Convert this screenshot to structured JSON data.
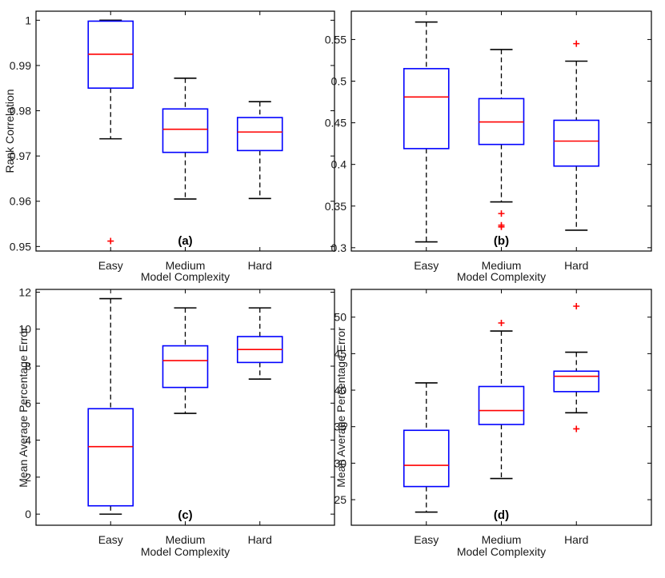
{
  "colors": {
    "box": "#0000ff",
    "median": "#ff0000",
    "whisker": "#000000",
    "outlier": "#ff0000"
  },
  "chart_data": [
    {
      "type": "box",
      "panel_label": "(a)",
      "xlabel": "Model Complexity",
      "ylabel": "Rank Correlation",
      "categories": [
        "Easy",
        "Medium",
        "Hard"
      ],
      "ylim": [
        0.949,
        1.002
      ],
      "yticks": [
        0.95,
        0.96,
        0.97,
        0.98,
        0.99,
        1
      ],
      "ytick_labels": [
        "0.95",
        "0.96",
        "0.97",
        "0.98",
        "0.99",
        "1"
      ],
      "boxes": [
        {
          "category": "Easy",
          "whisker_low": 0.9738,
          "q1": 0.985,
          "median": 0.9925,
          "q3": 0.9998,
          "whisker_high": 1.0,
          "outliers": [
            0.9512
          ]
        },
        {
          "category": "Medium",
          "whisker_low": 0.9605,
          "q1": 0.9708,
          "median": 0.9759,
          "q3": 0.9804,
          "whisker_high": 0.9872,
          "outliers": []
        },
        {
          "category": "Hard",
          "whisker_low": 0.9606,
          "q1": 0.9712,
          "median": 0.9753,
          "q3": 0.9785,
          "whisker_high": 0.982,
          "outliers": []
        }
      ]
    },
    {
      "type": "box",
      "panel_label": "(b)",
      "xlabel": "Model Complexity",
      "ylabel": "",
      "categories": [
        "Easy",
        "Medium",
        "Hard"
      ],
      "ylim": [
        0.296,
        0.584
      ],
      "yticks": [
        0.3,
        0.35,
        0.4,
        0.45,
        0.5,
        0.55
      ],
      "ytick_labels": [
        "0.3",
        "0.35",
        "0.4",
        "0.45",
        "0.5",
        "0.55"
      ],
      "boxes": [
        {
          "category": "Easy",
          "whisker_low": 0.307,
          "q1": 0.419,
          "median": 0.481,
          "q3": 0.515,
          "whisker_high": 0.571,
          "outliers": []
        },
        {
          "category": "Medium",
          "whisker_low": 0.355,
          "q1": 0.424,
          "median": 0.451,
          "q3": 0.479,
          "whisker_high": 0.538,
          "outliers": [
            0.341,
            0.327,
            0.325
          ]
        },
        {
          "category": "Hard",
          "whisker_low": 0.321,
          "q1": 0.398,
          "median": 0.428,
          "q3": 0.453,
          "whisker_high": 0.524,
          "outliers": [
            0.545
          ]
        }
      ]
    },
    {
      "type": "box",
      "panel_label": "(c)",
      "xlabel": "Model Complexity",
      "ylabel": "Mean Average Percentage Error",
      "categories": [
        "Easy",
        "Medium",
        "Hard"
      ],
      "ylim": [
        -0.6,
        12.15
      ],
      "yticks": [
        0,
        2,
        4,
        6,
        8,
        10,
        12
      ],
      "ytick_labels": [
        "0",
        "2",
        "4",
        "6",
        "8",
        "10",
        "12"
      ],
      "boxes": [
        {
          "category": "Easy",
          "whisker_low": 0.0,
          "q1": 0.45,
          "median": 3.65,
          "q3": 5.7,
          "whisker_high": 11.65,
          "outliers": []
        },
        {
          "category": "Medium",
          "whisker_low": 5.45,
          "q1": 6.85,
          "median": 8.3,
          "q3": 9.1,
          "whisker_high": 11.15,
          "outliers": []
        },
        {
          "category": "Hard",
          "whisker_low": 7.3,
          "q1": 8.2,
          "median": 8.9,
          "q3": 9.6,
          "whisker_high": 11.15,
          "outliers": []
        }
      ]
    },
    {
      "type": "box",
      "panel_label": "(d)",
      "xlabel": "Model Complexity",
      "ylabel": "Mean Average Percentage Error",
      "categories": [
        "Easy",
        "Medium",
        "Hard"
      ],
      "ylim": [
        21.5,
        53.8
      ],
      "yticks": [
        25,
        30,
        35,
        40,
        45,
        50
      ],
      "ytick_labels": [
        "25",
        "30",
        "35",
        "40",
        "45",
        "50"
      ],
      "boxes": [
        {
          "category": "Easy",
          "whisker_low": 23.3,
          "q1": 26.8,
          "median": 29.7,
          "q3": 34.5,
          "whisker_high": 41.0,
          "outliers": []
        },
        {
          "category": "Medium",
          "whisker_low": 27.9,
          "q1": 35.3,
          "median": 37.2,
          "q3": 40.5,
          "whisker_high": 48.1,
          "outliers": [
            49.2
          ]
        },
        {
          "category": "Hard",
          "whisker_low": 36.9,
          "q1": 39.8,
          "median": 41.9,
          "q3": 42.6,
          "whisker_high": 45.2,
          "outliers": [
            34.7,
            51.5
          ]
        }
      ]
    }
  ]
}
